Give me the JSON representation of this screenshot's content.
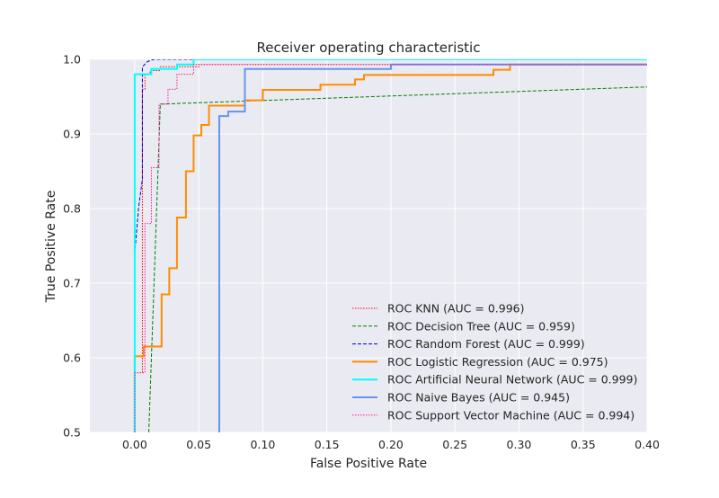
{
  "chart_data": {
    "type": "line",
    "title": "Receiver operating characteristic",
    "xlabel": "False Positive Rate",
    "ylabel": "True Positive Rate",
    "xlim": [
      -0.035,
      0.4
    ],
    "ylim": [
      0.5,
      1.0
    ],
    "xticks": [
      "0.00",
      "0.05",
      "0.10",
      "0.15",
      "0.20",
      "0.25",
      "0.30",
      "0.35",
      "0.40"
    ],
    "xtick_values": [
      0.0,
      0.05,
      0.1,
      0.15,
      0.2,
      0.25,
      0.3,
      0.35,
      0.4
    ],
    "yticks": [
      "0.5",
      "0.6",
      "0.7",
      "0.8",
      "0.9",
      "1.0"
    ],
    "ytick_values": [
      0.5,
      0.6,
      0.7,
      0.8,
      0.9,
      1.0
    ],
    "grid": true,
    "legend_position": "lower-right",
    "background": "#eaeaf2",
    "series": [
      {
        "name": "ROC KNN (AUC = 0.996)",
        "color": "#ff0000",
        "style": "dotted",
        "width": 1,
        "points": [
          [
            0.0,
            0.5
          ],
          [
            0.0,
            0.58
          ],
          [
            0.006,
            0.58
          ],
          [
            0.006,
            0.96
          ],
          [
            0.008,
            0.96
          ],
          [
            0.008,
            0.98
          ],
          [
            0.012,
            0.98
          ],
          [
            0.012,
            0.985
          ],
          [
            0.02,
            0.985
          ],
          [
            0.02,
            0.99
          ],
          [
            0.05,
            0.99
          ],
          [
            0.05,
            0.993
          ],
          [
            0.4,
            0.993
          ]
        ]
      },
      {
        "name": "ROC Decision Tree (AUC = 0.959)",
        "color": "#008000",
        "style": "dashed",
        "width": 1,
        "points": [
          [
            0.011,
            0.5
          ],
          [
            0.02,
            0.94
          ],
          [
            0.4,
            0.963
          ]
        ]
      },
      {
        "name": "ROC Random Forest (AUC = 0.999)",
        "color": "#0000cd",
        "style": "dashed",
        "width": 1,
        "points": [
          [
            0.0,
            0.5
          ],
          [
            0.0,
            0.74
          ],
          [
            0.003,
            0.8
          ],
          [
            0.006,
            0.84
          ],
          [
            0.006,
            0.99
          ],
          [
            0.01,
            0.997
          ],
          [
            0.015,
            1.0
          ],
          [
            0.4,
            1.0
          ]
        ]
      },
      {
        "name": "ROC Logistic Regression (AUC = 0.975)",
        "color": "#ff8c00",
        "style": "solid",
        "width": 2,
        "points": [
          [
            0.0,
            0.5
          ],
          [
            0.0,
            0.602
          ],
          [
            0.007,
            0.602
          ],
          [
            0.007,
            0.615
          ],
          [
            0.021,
            0.615
          ],
          [
            0.021,
            0.685
          ],
          [
            0.027,
            0.685
          ],
          [
            0.027,
            0.72
          ],
          [
            0.033,
            0.72
          ],
          [
            0.033,
            0.788
          ],
          [
            0.04,
            0.788
          ],
          [
            0.04,
            0.85
          ],
          [
            0.046,
            0.85
          ],
          [
            0.046,
            0.898
          ],
          [
            0.052,
            0.898
          ],
          [
            0.052,
            0.912
          ],
          [
            0.058,
            0.912
          ],
          [
            0.058,
            0.938
          ],
          [
            0.086,
            0.938
          ],
          [
            0.086,
            0.945
          ],
          [
            0.1,
            0.945
          ],
          [
            0.1,
            0.959
          ],
          [
            0.145,
            0.959
          ],
          [
            0.145,
            0.966
          ],
          [
            0.172,
            0.966
          ],
          [
            0.172,
            0.973
          ],
          [
            0.179,
            0.973
          ],
          [
            0.179,
            0.979
          ],
          [
            0.28,
            0.979
          ],
          [
            0.28,
            0.986
          ],
          [
            0.293,
            0.986
          ],
          [
            0.293,
            0.993
          ],
          [
            0.4,
            0.993
          ]
        ]
      },
      {
        "name": "ROC Artificial Neural Network (AUC = 0.999)",
        "color": "#00ffff",
        "style": "solid",
        "width": 2,
        "points": [
          [
            0.0,
            0.5
          ],
          [
            0.0,
            0.98
          ],
          [
            0.007,
            0.98
          ],
          [
            0.007,
            0.98
          ],
          [
            0.013,
            0.98
          ],
          [
            0.013,
            0.987
          ],
          [
            0.033,
            0.987
          ],
          [
            0.033,
            0.993
          ],
          [
            0.046,
            0.993
          ],
          [
            0.046,
            1.0
          ],
          [
            0.4,
            1.0
          ]
        ]
      },
      {
        "name": "ROC Naive Bayes (AUC = 0.945)",
        "color": "#6495ed",
        "style": "solid",
        "width": 2,
        "points": [
          [
            0.066,
            0.5
          ],
          [
            0.066,
            0.924
          ],
          [
            0.073,
            0.924
          ],
          [
            0.073,
            0.93
          ],
          [
            0.086,
            0.93
          ],
          [
            0.086,
            0.987
          ],
          [
            0.2,
            0.987
          ],
          [
            0.2,
            0.993
          ],
          [
            0.4,
            0.993
          ]
        ]
      },
      {
        "name": "ROC Support Vector Machine (AUC = 0.994)",
        "color": "#ff1493",
        "style": "dotted",
        "width": 1,
        "points": [
          [
            0.0,
            0.5
          ],
          [
            0.0,
            0.58
          ],
          [
            0.008,
            0.58
          ],
          [
            0.008,
            0.78
          ],
          [
            0.013,
            0.78
          ],
          [
            0.013,
            0.855
          ],
          [
            0.019,
            0.855
          ],
          [
            0.019,
            0.94
          ],
          [
            0.026,
            0.94
          ],
          [
            0.026,
            0.96
          ],
          [
            0.033,
            0.96
          ],
          [
            0.033,
            0.98
          ],
          [
            0.046,
            0.98
          ],
          [
            0.046,
            0.993
          ],
          [
            0.4,
            0.993
          ]
        ]
      }
    ]
  }
}
